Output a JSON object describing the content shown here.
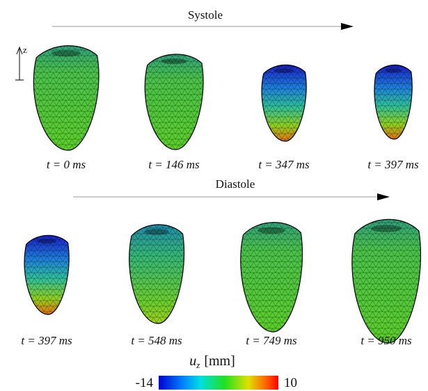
{
  "sections": [
    {
      "title": "Systole",
      "frames": [
        "t = 0 ms",
        "t = 146 ms",
        "t = 347 ms",
        "t = 397 ms"
      ]
    },
    {
      "title": "Diastole",
      "frames": [
        "t = 397 ms",
        "t = 548 ms",
        "t = 749 ms",
        "t = 950 ms"
      ]
    }
  ],
  "axis_label": "z",
  "colorbar": {
    "symbol": "u",
    "subscript": "z",
    "unit": "[mm]",
    "min": -14,
    "max": 10
  }
}
